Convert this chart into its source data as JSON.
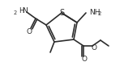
{
  "bg": "#ffffff",
  "lc": "#2d2d2d",
  "lw": 1.2,
  "S": [
    76,
    16
  ],
  "C2": [
    95,
    28
  ],
  "C3": [
    91,
    49
  ],
  "C4": [
    67,
    52
  ],
  "C5": [
    57,
    31
  ],
  "fig_w": 1.53,
  "fig_h": 0.77,
  "dpi": 100
}
